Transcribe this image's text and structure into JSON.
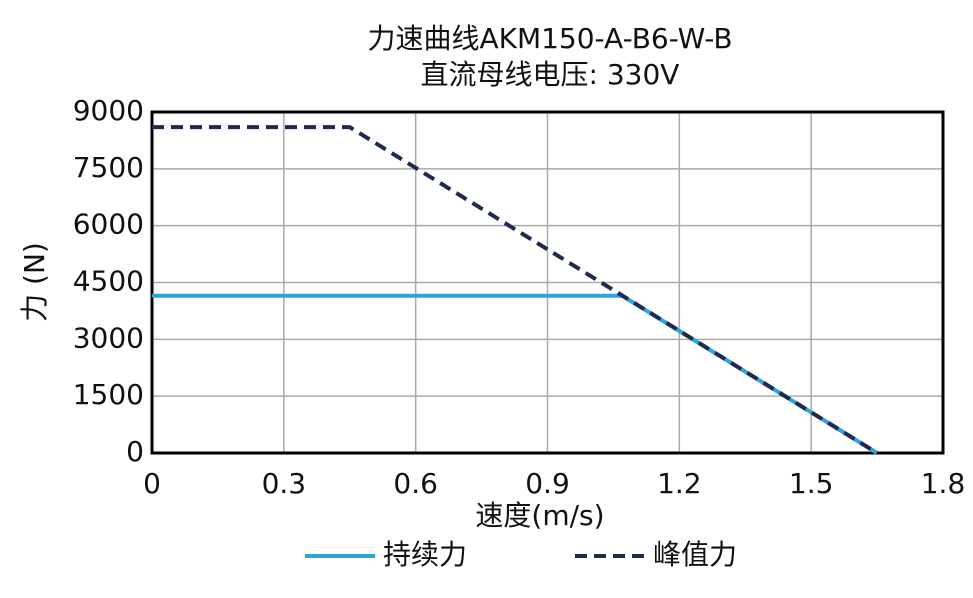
{
  "chart_data": {
    "type": "line",
    "title": "力速曲线AKM150-A-B6-W-B",
    "subtitle": "直流母线电压: 330V",
    "x_label": "速度(m/s)",
    "y_label": "力 (N)",
    "xlim": [
      0,
      1.8
    ],
    "xticks": [
      0,
      0.3,
      0.6,
      0.9,
      1.2,
      1.5,
      1.8
    ],
    "ylim": [
      0,
      9000
    ],
    "yticks": [
      0,
      1500,
      3000,
      4500,
      6000,
      7500,
      9000
    ],
    "grid": true,
    "legend": "bottom",
    "series": [
      {
        "name": "持续力",
        "color": "#2ea3dc",
        "linestyle": "solid",
        "x": [
          0,
          1.07,
          1.65
        ],
        "values": [
          4150,
          4150,
          0
        ]
      },
      {
        "name": "峰值力",
        "color": "#1f2a4f",
        "linestyle": "dashed",
        "x": [
          0,
          0.45,
          1.65
        ],
        "values": [
          8600,
          8600,
          0
        ]
      }
    ]
  }
}
